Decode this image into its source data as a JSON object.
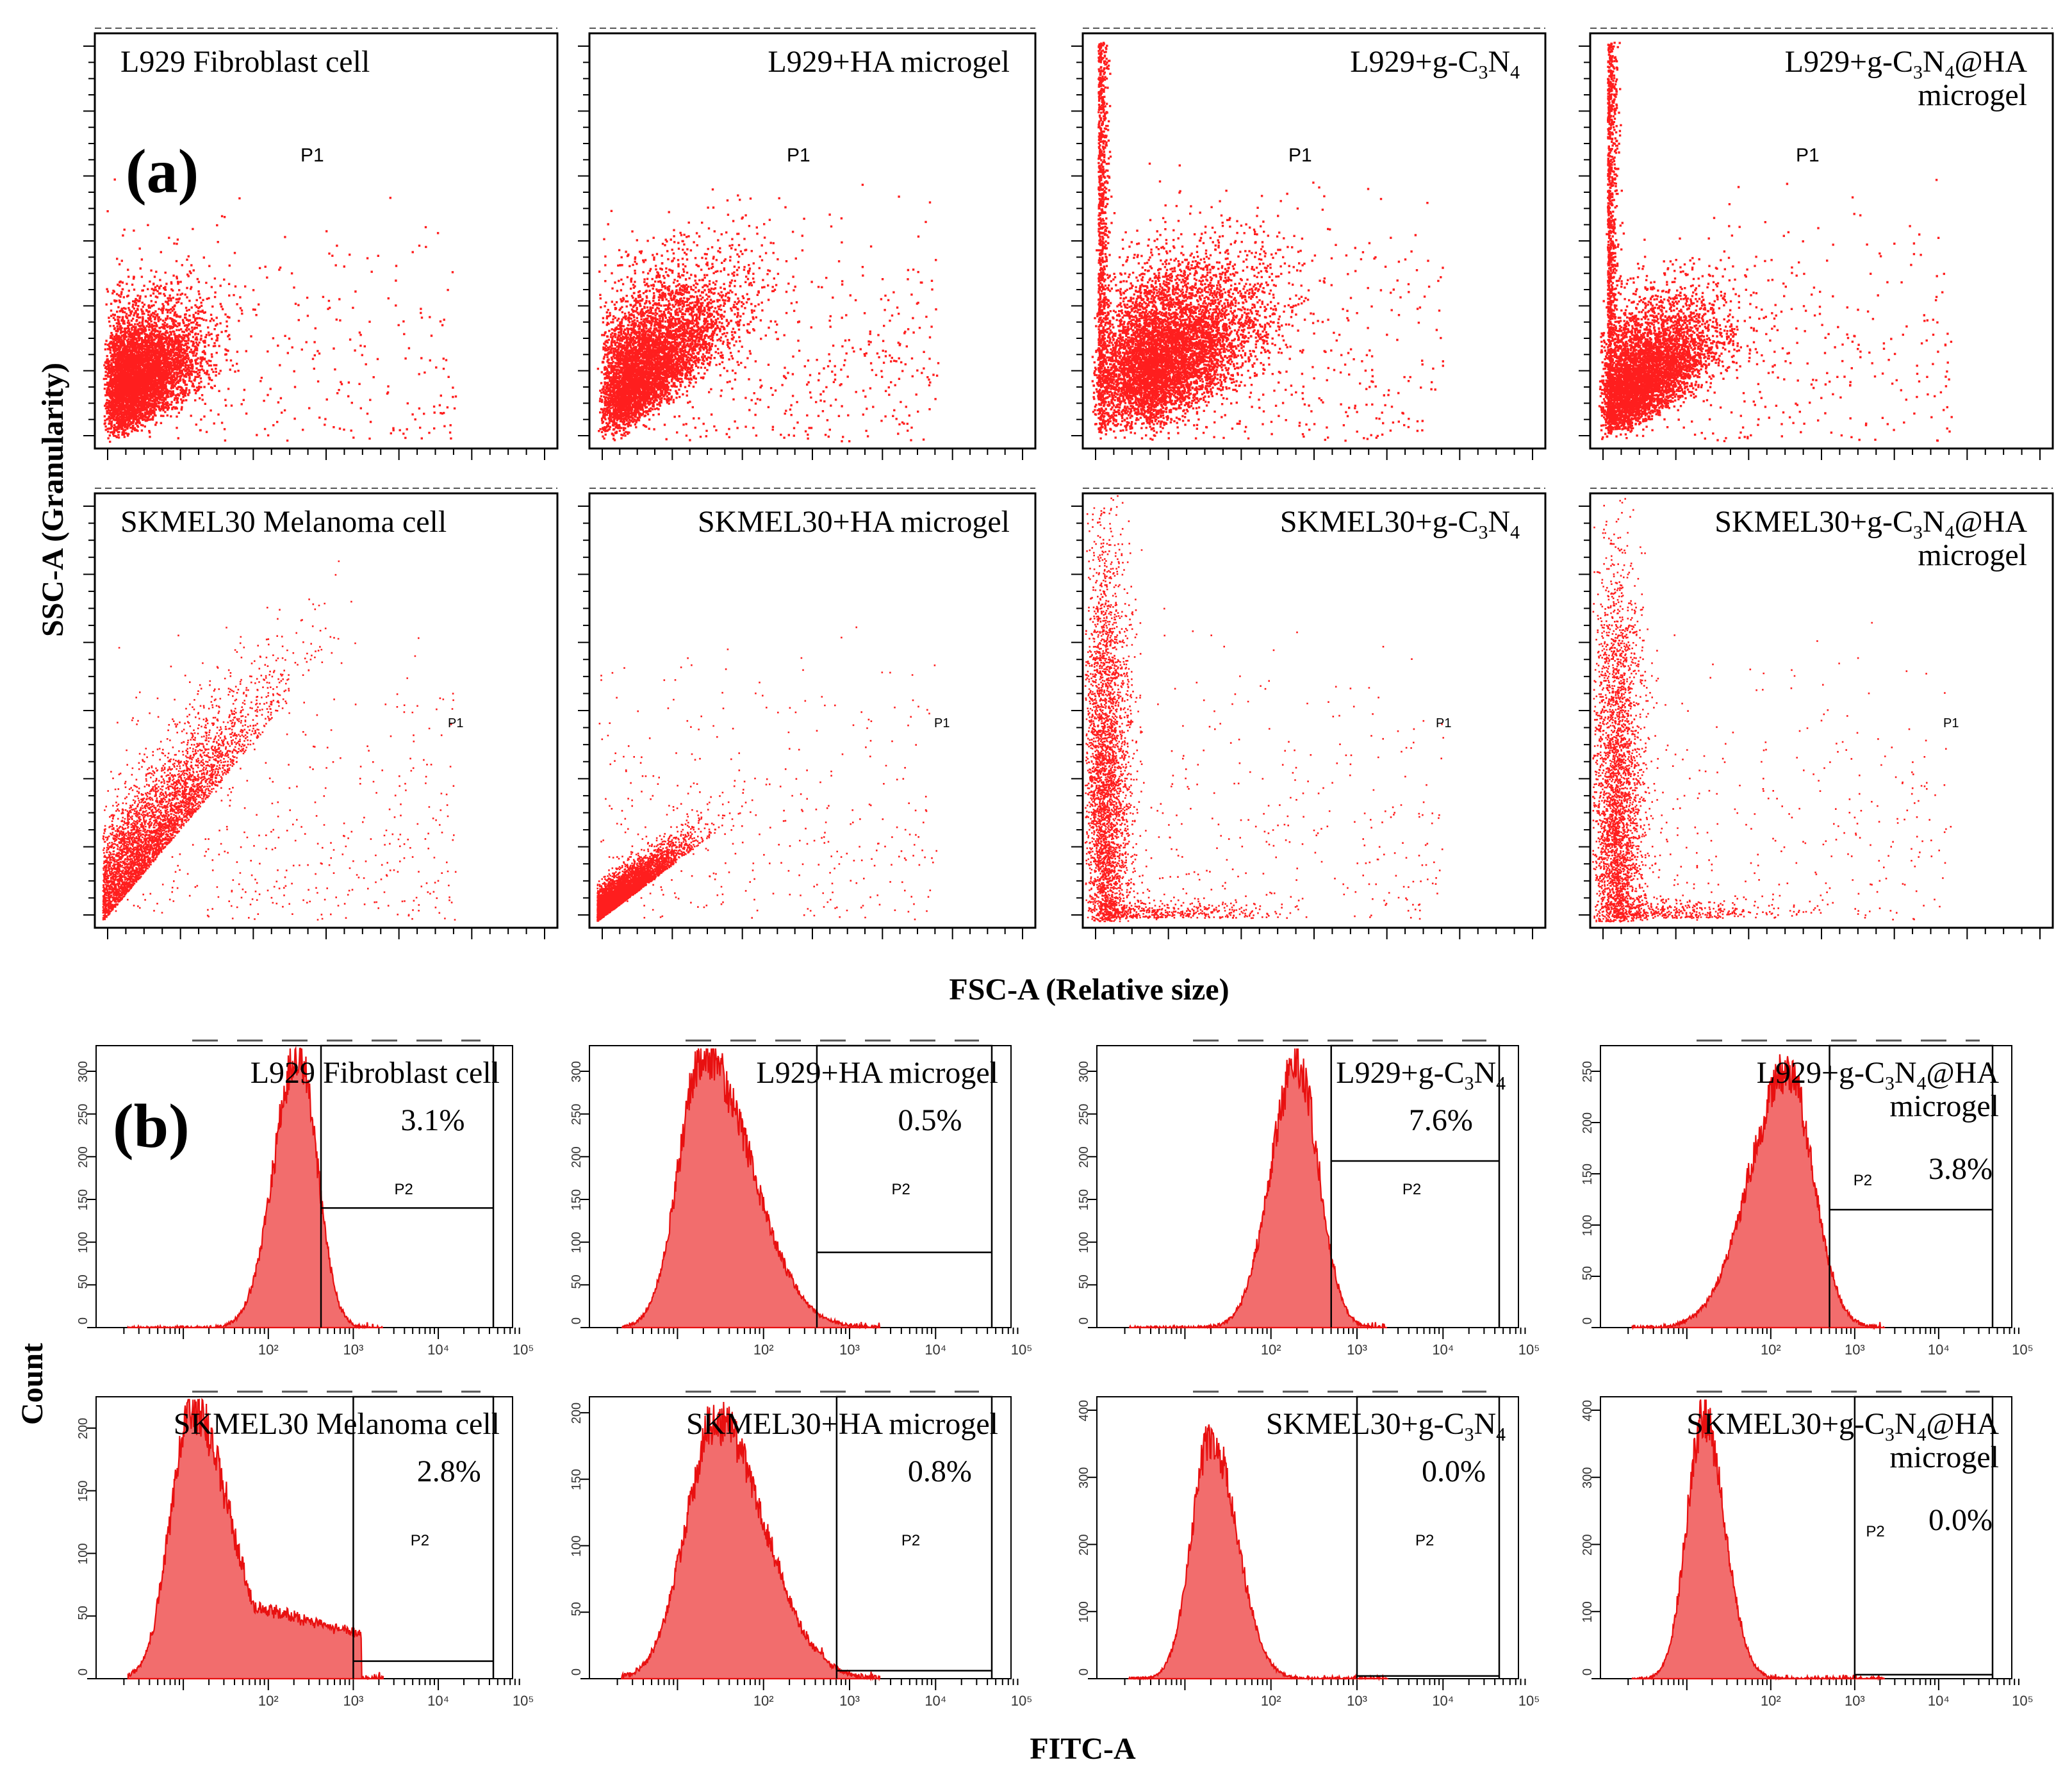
{
  "figure": {
    "panel_a_label": "(a)",
    "panel_b_label": "(b)",
    "scatter_ylabel": "SSC-A (Granularity)",
    "scatter_xlabel": "FSC-A (Relative size)",
    "hist_ylabel": "Count",
    "hist_xlabel": "FITC-A",
    "colors": {
      "data": "#ff1e1e",
      "fill": "#f26d6d",
      "edge": "#e81010",
      "axis": "#000000"
    }
  },
  "chart_data": [
    {
      "type": "scatter",
      "panel": "a",
      "row": 0,
      "col": 0,
      "title_lines": [
        [
          {
            "t": "L929 Fibroblast cell"
          }
        ]
      ],
      "gate_label": "P1",
      "xlabel": "FSC-A (Relative size)",
      "ylabel": "SSC-A (Granularity)",
      "xlim": [
        0,
        250
      ],
      "ylim": [
        0,
        250
      ],
      "population": {
        "kind": "blob",
        "center": [
          30,
          55
        ],
        "spread": [
          22,
          25
        ],
        "slope": 0.35,
        "n": 5200,
        "outliers": 300
      }
    },
    {
      "type": "scatter",
      "panel": "a",
      "row": 0,
      "col": 1,
      "title_lines": [
        [
          {
            "t": "L929+HA microgel"
          }
        ]
      ],
      "gate_label": "P1",
      "xlabel": "FSC-A (Relative size)",
      "ylabel": "SSC-A (Granularity)",
      "xlim": [
        0,
        250
      ],
      "ylim": [
        0,
        250
      ],
      "population": {
        "kind": "blob",
        "center": [
          35,
          45
        ],
        "spread": [
          30,
          30
        ],
        "slope": 0.55,
        "n": 5200,
        "outliers": 500
      }
    },
    {
      "type": "scatter",
      "panel": "a",
      "row": 0,
      "col": 2,
      "title_lines": [
        [
          {
            "t": "L929+g-C"
          },
          {
            "t": "3",
            "sub": true
          },
          {
            "t": "N"
          },
          {
            "t": "4",
            "sub": true
          }
        ]
      ],
      "gate_label": "P1",
      "xlabel": "FSC-A (Relative size)",
      "ylabel": "SSC-A (Granularity)",
      "xlim": [
        0,
        250
      ],
      "ylim": [
        0,
        250
      ],
      "population": {
        "kind": "blob+wall",
        "center": [
          55,
          60
        ],
        "spread": [
          32,
          32
        ],
        "slope": 0.4,
        "n": 6200,
        "outliers": 400,
        "wall_x": 8,
        "wall_n": 900
      }
    },
    {
      "type": "scatter",
      "panel": "a",
      "row": 0,
      "col": 3,
      "title_lines": [
        [
          {
            "t": "L929+g-C"
          },
          {
            "t": "3",
            "sub": true
          },
          {
            "t": "N"
          },
          {
            "t": "4",
            "sub": true
          },
          {
            "t": "@HA"
          }
        ],
        [
          {
            "t": "microgel"
          }
        ]
      ],
      "gate_label": "P1",
      "xlabel": "FSC-A (Relative size)",
      "ylabel": "SSC-A (Granularity)",
      "xlim": [
        0,
        250
      ],
      "ylim": [
        0,
        250
      ],
      "population": {
        "kind": "blob+wall",
        "center": [
          35,
          50
        ],
        "spread": [
          25,
          25
        ],
        "slope": 0.45,
        "n": 4800,
        "outliers": 350,
        "wall_x": 9,
        "wall_n": 1000
      }
    },
    {
      "type": "scatter",
      "panel": "a",
      "row": 1,
      "col": 0,
      "title_lines": [
        [
          {
            "t": "SKMEL30 Melanoma cell"
          }
        ]
      ],
      "gate_label": "P1",
      "xlabel": "FSC-A (Relative size)",
      "ylabel": "SSC-A (Granularity)",
      "xlim": [
        0,
        250
      ],
      "ylim": [
        0,
        250
      ],
      "population": {
        "kind": "diagonal",
        "center": [
          20,
          20
        ],
        "spread": [
          40,
          40
        ],
        "slope": 0.9,
        "n": 4200,
        "outliers": 450
      }
    },
    {
      "type": "scatter",
      "panel": "a",
      "row": 1,
      "col": 1,
      "title_lines": [
        [
          {
            "t": "SKMEL30+HA microgel"
          }
        ]
      ],
      "gate_label": "P1",
      "xlabel": "FSC-A (Relative size)",
      "ylabel": "SSC-A (Granularity)",
      "xlim": [
        0,
        250
      ],
      "ylim": [
        0,
        250
      ],
      "population": {
        "kind": "diagonal",
        "center": [
          18,
          12
        ],
        "spread": [
          22,
          14
        ],
        "slope": 0.55,
        "n": 4200,
        "outliers": 350
      }
    },
    {
      "type": "scatter",
      "panel": "a",
      "row": 1,
      "col": 2,
      "title_lines": [
        [
          {
            "t": "SKMEL30+g-C"
          },
          {
            "t": "3",
            "sub": true
          },
          {
            "t": "N"
          },
          {
            "t": "4",
            "sub": true
          }
        ]
      ],
      "gate_label": "P1",
      "xlabel": "FSC-A (Relative size)",
      "ylabel": "SSC-A (Granularity)",
      "xlim": [
        0,
        250
      ],
      "ylim": [
        0,
        250
      ],
      "population": {
        "kind": "column",
        "center": [
          10,
          80
        ],
        "spread": [
          5,
          70
        ],
        "slope": 0,
        "n": 3800,
        "outliers": 300
      }
    },
    {
      "type": "scatter",
      "panel": "a",
      "row": 1,
      "col": 3,
      "title_lines": [
        [
          {
            "t": "SKMEL30+g-C"
          },
          {
            "t": "3",
            "sub": true
          },
          {
            "t": "N"
          },
          {
            "t": "4",
            "sub": true
          },
          {
            "t": "@HA"
          }
        ],
        [
          {
            "t": "microgel"
          }
        ]
      ],
      "gate_label": "P1",
      "xlabel": "FSC-A (Relative size)",
      "ylabel": "SSC-A (Granularity)",
      "xlim": [
        0,
        250
      ],
      "ylim": [
        0,
        250
      ],
      "population": {
        "kind": "column",
        "center": [
          12,
          70
        ],
        "spread": [
          6,
          65
        ],
        "slope": 0,
        "n": 3600,
        "outliers": 300
      }
    },
    {
      "type": "histogram",
      "panel": "b",
      "row": 0,
      "col": 0,
      "title_lines": [
        [
          {
            "t": "L929 Fibroblast cell"
          }
        ]
      ],
      "percent": "3.1%",
      "gate_label": "P2",
      "xlabel": "FITC-A",
      "ylabel": "Count",
      "ylim": [
        0,
        330
      ],
      "yticks": [
        0,
        50,
        100,
        150,
        200,
        250,
        300
      ],
      "x_decades": [
        "10²",
        "10³",
        "10⁴",
        "10⁵"
      ],
      "peak_log": 2.35,
      "peak_count": 320,
      "sigma_left": 0.28,
      "sigma_right": 0.22,
      "shoulder": 0,
      "gate_start_log": 2.62,
      "gate_line_count": 140
    },
    {
      "type": "histogram",
      "panel": "b",
      "row": 0,
      "col": 1,
      "title_lines": [
        [
          {
            "t": "L929+HA microgel"
          }
        ]
      ],
      "percent": "0.5%",
      "gate_label": "P2",
      "xlabel": "FITC-A",
      "ylabel": "Count",
      "ylim": [
        0,
        330
      ],
      "yticks": [
        0,
        50,
        100,
        150,
        200,
        250,
        300
      ],
      "x_decades": [
        "10²",
        "10³",
        "10⁴",
        "10⁵"
      ],
      "peak_log": 1.3,
      "peak_count": 320,
      "sigma_left": 0.28,
      "sigma_right": 0.55,
      "shoulder": 0,
      "gate_start_log": 2.62,
      "gate_line_count": 88
    },
    {
      "type": "histogram",
      "panel": "b",
      "row": 0,
      "col": 2,
      "title_lines": [
        [
          {
            "t": "L929+g-C"
          },
          {
            "t": "3",
            "sub": true
          },
          {
            "t": "N"
          },
          {
            "t": "4",
            "sub": true
          }
        ]
      ],
      "percent": "7.6%",
      "gate_label": "P2",
      "xlabel": "FITC-A",
      "ylabel": "Count",
      "ylim": [
        0,
        330
      ],
      "yticks": [
        0,
        50,
        100,
        150,
        200,
        250,
        300
      ],
      "x_decades": [
        "10²",
        "10³",
        "10⁴",
        "10⁵"
      ],
      "peak_log": 2.3,
      "peak_count": 310,
      "sigma_left": 0.3,
      "sigma_right": 0.25,
      "shoulder": 0,
      "gate_start_log": 2.7,
      "gate_line_count": 195
    },
    {
      "type": "histogram",
      "panel": "b",
      "row": 0,
      "col": 3,
      "title_lines": [
        [
          {
            "t": "L929+g-C"
          },
          {
            "t": "3",
            "sub": true
          },
          {
            "t": "N"
          },
          {
            "t": "4",
            "sub": true
          },
          {
            "t": "@HA"
          }
        ],
        [
          {
            "t": "microgel"
          }
        ]
      ],
      "percent": "3.8%",
      "gate_label": "P2",
      "xlabel": "FITC-A",
      "ylabel": "Count",
      "ylim": [
        0,
        275
      ],
      "yticks": [
        0,
        50,
        100,
        150,
        200,
        250
      ],
      "x_decades": [
        "10²",
        "10³",
        "10⁴",
        "10⁵"
      ],
      "peak_log": 2.2,
      "peak_count": 250,
      "sigma_left": 0.45,
      "sigma_right": 0.3,
      "shoulder": 0,
      "gate_start_log": 2.7,
      "gate_line_count": 115
    },
    {
      "type": "histogram",
      "panel": "b",
      "row": 1,
      "col": 0,
      "title_lines": [
        [
          {
            "t": "SKMEL30 Melanoma cell"
          }
        ]
      ],
      "percent": "2.8%",
      "gate_label": "P2",
      "xlabel": "FITC-A",
      "ylabel": "Count",
      "ylim": [
        0,
        225
      ],
      "yticks": [
        0,
        50,
        100,
        150,
        200
      ],
      "x_decades": [
        "10²",
        "10³",
        "10⁴",
        "10⁵"
      ],
      "peak_log": 1.1,
      "peak_count": 215,
      "sigma_left": 0.25,
      "sigma_right": 0.45,
      "shoulder": 70,
      "shoulder_end": 3.1,
      "gate_start_log": 3.0,
      "gate_line_count": 14
    },
    {
      "type": "histogram",
      "panel": "b",
      "row": 1,
      "col": 1,
      "title_lines": [
        [
          {
            "t": "SKMEL30+HA microgel"
          }
        ]
      ],
      "percent": "0.8%",
      "gate_label": "P2",
      "xlabel": "FITC-A",
      "ylabel": "Count",
      "ylim": [
        0,
        212
      ],
      "yticks": [
        0,
        50,
        100,
        150,
        200
      ],
      "x_decades": [
        "10²",
        "10³",
        "10⁴",
        "10⁵"
      ],
      "peak_log": 1.45,
      "peak_count": 195,
      "sigma_left": 0.35,
      "sigma_right": 0.55,
      "shoulder": 40,
      "shoulder_end": 2.7,
      "gate_start_log": 2.85,
      "gate_line_count": 6
    },
    {
      "type": "histogram",
      "panel": "b",
      "row": 1,
      "col": 2,
      "title_lines": [
        [
          {
            "t": "SKMEL30+g-C"
          },
          {
            "t": "3",
            "sub": true
          },
          {
            "t": "N"
          },
          {
            "t": "4",
            "sub": true
          }
        ]
      ],
      "percent": "0.0%",
      "gate_label": "P2",
      "xlabel": "FITC-A",
      "ylabel": "Count",
      "ylim": [
        0,
        420
      ],
      "yticks": [
        0,
        100,
        200,
        300,
        400
      ],
      "x_decades": [
        "10²",
        "10³",
        "10⁴",
        "10⁵"
      ],
      "peak_log": 1.3,
      "peak_count": 360,
      "sigma_left": 0.22,
      "sigma_right": 0.3,
      "shoulder": 0,
      "gate_start_log": 3.0,
      "gate_line_count": 4
    },
    {
      "type": "histogram",
      "panel": "b",
      "row": 1,
      "col": 3,
      "title_lines": [
        [
          {
            "t": "SKMEL30+g-C"
          },
          {
            "t": "3",
            "sub": true
          },
          {
            "t": "N"
          },
          {
            "t": "4",
            "sub": true
          },
          {
            "t": "@HA"
          }
        ],
        [
          {
            "t": "microgel"
          }
        ]
      ],
      "percent": "0.0%",
      "gate_label": "P2",
      "xlabel": "FITC-A",
      "ylabel": "Count",
      "ylim": [
        0,
        420
      ],
      "yticks": [
        0,
        100,
        200,
        300,
        400
      ],
      "x_decades": [
        "10²",
        "10³",
        "10⁴",
        "10⁵"
      ],
      "peak_log": 1.2,
      "peak_count": 390,
      "sigma_left": 0.2,
      "sigma_right": 0.25,
      "shoulder": 0,
      "gate_start_log": 3.0,
      "gate_line_count": 6
    }
  ]
}
